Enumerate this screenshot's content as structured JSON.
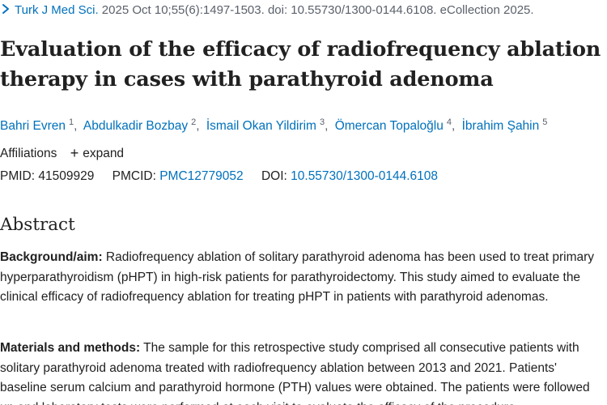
{
  "citation": {
    "journal": "Turk J Med Sci.",
    "details": " 2025 Oct 10;55(6):1497-1503. doi: 10.55730/1300-0144.6108. eCollection 2025."
  },
  "title": "Evaluation of the efficacy of radiofrequency ablation therapy in cases with parathyroid adenoma",
  "authors": [
    {
      "name": "Bahri Evren",
      "sup": "1"
    },
    {
      "name": "Abdulkadir Bozbay",
      "sup": "2"
    },
    {
      "name": "İsmail Okan Yildirim",
      "sup": "3"
    },
    {
      "name": "Ömercan Topaloğlu",
      "sup": "4"
    },
    {
      "name": "İbrahim Şahin",
      "sup": "5"
    }
  ],
  "affiliations": {
    "label": "Affiliations",
    "expand_label": "expand"
  },
  "identifiers": {
    "pmid_label": "PMID:",
    "pmid_value": "41509929",
    "pmcid_label": "PMCID:",
    "pmcid_value": "PMC12779052",
    "doi_label": "DOI:",
    "doi_value": "10.55730/1300-0144.6108"
  },
  "abstract": {
    "heading": "Abstract",
    "sections": [
      {
        "label": "Background/aim:",
        "text": " Radiofrequency ablation of solitary parathyroid adenoma has been used to treat primary hyperparathyroidism (pHPT) in high-risk patients for parathyroidectomy. This study aimed to evaluate the clinical efficacy of radiofrequency ablation for treating pHPT in patients with parathyroid adenomas."
      },
      {
        "label": "Materials and methods:",
        "text": " The sample for this retrospective study comprised all consecutive patients with solitary parathyroid adenoma treated with radiofrequency ablation between 2013 and 2021. Patients' baseline serum calcium and parathyroid hormone (PTH) values were obtained. The patients were followed up and laboratory tests were performed at each visit to evaluate the efficacy of the procedure."
      }
    ]
  },
  "colors": {
    "link": "#0071bc",
    "text": "#212121",
    "muted": "#5b616b"
  }
}
